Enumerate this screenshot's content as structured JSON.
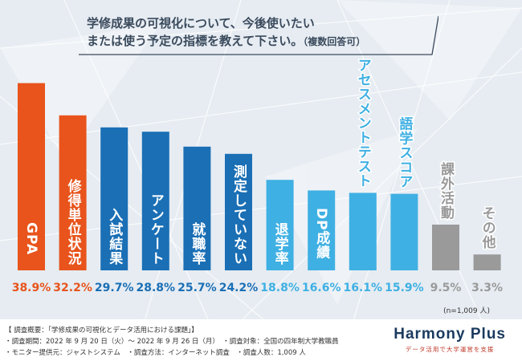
{
  "title": {
    "line1": "学修成果の可視化について、今後使いたい",
    "line2": "または使う予定の指標を教えて下さい。",
    "note": "（複数回答可）"
  },
  "chart_data": {
    "type": "bar",
    "categories": [
      "GPA",
      "修得単位状況",
      "入試結果",
      "アンケート",
      "就職率",
      "測定していない",
      "退学率",
      "DP成績",
      "アセスメントテスト",
      "語学スコア",
      "課外活動",
      "その他"
    ],
    "values": [
      38.9,
      32.2,
      29.7,
      28.8,
      25.7,
      24.2,
      18.8,
      16.6,
      16.1,
      15.9,
      9.5,
      3.3
    ],
    "value_labels": [
      "38.9%",
      "32.2%",
      "29.7%",
      "28.8%",
      "25.7%",
      "24.2%",
      "18.8%",
      "16.6%",
      "16.1%",
      "15.9%",
      "9.5%",
      "3.3%"
    ],
    "bar_colors": [
      "#e8541c",
      "#e8541c",
      "#1a6fb5",
      "#1a6fb5",
      "#1a6fb5",
      "#1a6fb5",
      "#3fb0e3",
      "#3fb0e3",
      "#3fb0e3",
      "#3fb0e3",
      "#9a9a9a",
      "#9a9a9a"
    ],
    "ylim": [
      0,
      40
    ],
    "grid": false
  },
  "sample_note": "(n=1,009 人)",
  "footer": {
    "line1": "【 調査概要：「学修成果の可視化とデータ活用における課題」】",
    "line2": "・調査期間：2022 年 9 月 20 日（火）～ 2022 年 9 月 26 日（月）　・調査対象：全国の四年制大学教職員",
    "line3": "・モニター提供元：ジャストシステム　・調査方法：インターネット調査　・調査人数：1,009 人",
    "brand_name": "Harmony Plus",
    "brand_tagline": "データ活用で大学運営を支援"
  }
}
